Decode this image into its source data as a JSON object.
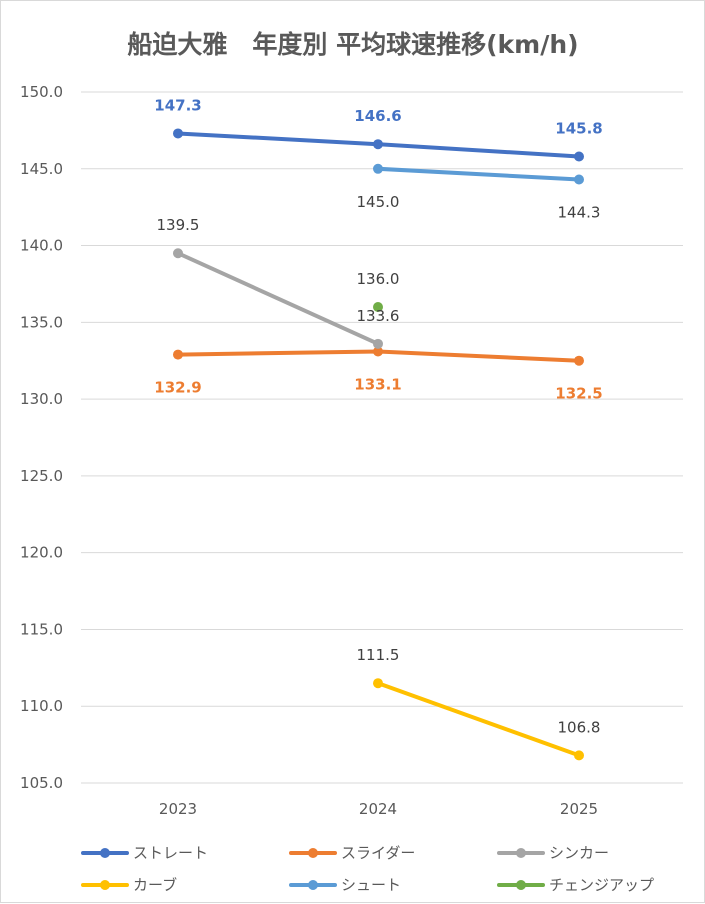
{
  "chart_data": {
    "type": "line",
    "title": "船迫大雅　年度別 平均球速推移(km/h)",
    "categories": [
      "2023",
      "2024",
      "2025"
    ],
    "ylim": [
      105,
      150
    ],
    "ytick_step": 5,
    "ytick_labels": [
      "105.0",
      "110.0",
      "115.0",
      "120.0",
      "125.0",
      "130.0",
      "135.0",
      "140.0",
      "145.0",
      "150.0"
    ],
    "grid": true,
    "legend_position": "bottom",
    "series": [
      {
        "name": "ストレート",
        "color": "#4472C4",
        "values": [
          147.3,
          146.6,
          145.8
        ],
        "labels": [
          "147.3",
          "146.6",
          "145.8"
        ],
        "label_color": "#4472C4",
        "label_pos": "above",
        "bold": true
      },
      {
        "name": "スライダー",
        "color": "#ED7D31",
        "values": [
          132.9,
          133.1,
          132.5
        ],
        "labels": [
          "132.9",
          "133.1",
          "132.5"
        ],
        "label_color": "#ED7D31",
        "label_pos": "below",
        "bold": true
      },
      {
        "name": "シンカー",
        "color": "#A5A5A5",
        "values": [
          139.5,
          133.6,
          null
        ],
        "labels": [
          "139.5",
          "133.6",
          ""
        ],
        "label_color": "#404040",
        "label_pos": "above",
        "bold": false
      },
      {
        "name": "カーブ",
        "color": "#FFC000",
        "values": [
          null,
          111.5,
          106.8
        ],
        "labels": [
          "",
          "111.5",
          "106.8"
        ],
        "label_color": "#404040",
        "label_pos": "above",
        "bold": false
      },
      {
        "name": "シュート",
        "color": "#5B9BD5",
        "values": [
          null,
          145.0,
          144.3
        ],
        "labels": [
          "",
          "145.0",
          "144.3"
        ],
        "label_color": "#404040",
        "label_pos": "below",
        "bold": false
      },
      {
        "name": "チェンジアップ",
        "color": "#70AD47",
        "values": [
          null,
          136.0,
          null
        ],
        "labels": [
          "",
          "136.0",
          ""
        ],
        "label_color": "#404040",
        "label_pos": "above",
        "bold": false
      }
    ]
  }
}
